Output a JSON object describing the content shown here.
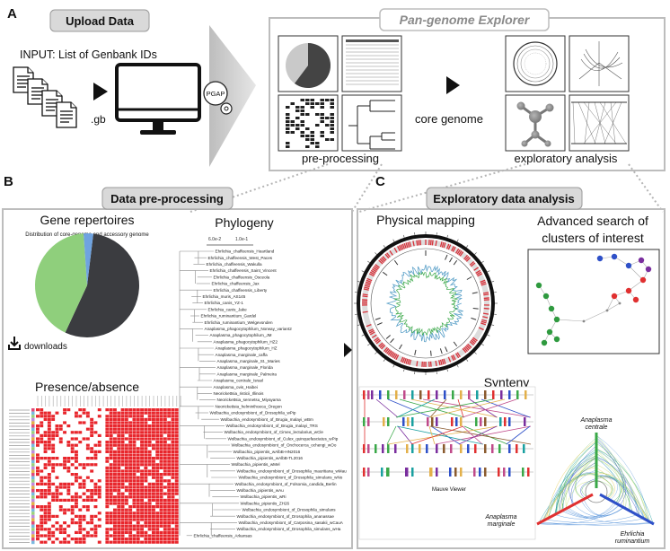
{
  "panel_a": {
    "letter": "A",
    "upload_title": "Upload Data",
    "input_text": "INPUT: List of Genbank IDs",
    "file_ext": ".gb",
    "pgap_label": "PGAP",
    "explorer_title": "Pan-genome Explorer",
    "preprocessing_caption": "pre-processing",
    "core_genome_label": "core genome",
    "exploratory_caption": "exploratory analysis"
  },
  "panel_b": {
    "letter": "B",
    "title": "Data pre-processing",
    "gene_repertoires_title": "Gene repertoires",
    "pie_subtitle": "Distribution of core-genome and accessory genome",
    "downloads_label": "downloads",
    "phylogeny_title": "Phylogeny",
    "scale_labels": [
      "6.0e-2",
      "1.0e-1"
    ],
    "presence_absence_title": "Presence/absence",
    "pie": {
      "slices": [
        {
          "name": "core",
          "value": 0.55,
          "color": "#3b3c40"
        },
        {
          "name": "accessory",
          "value": 0.42,
          "color": "#8fcf7c"
        },
        {
          "name": "other",
          "value": 0.03,
          "color": "#6fa3e0"
        }
      ]
    },
    "tree_leaves": [
      "Ehrlichia_chaffeensis_Heartland",
      "Ehrlichia_chaffeensis_West_Paces",
      "Ehrlichia_chaffeensis_Wakulla",
      "Ehrlichia_chaffeensis_Saint_Vincent",
      "Ehrlichia_chaffeensis_Osceola",
      "Ehrlichia_chaffeensis_Jax",
      "Ehrlichia_chaffeensis_Liberty",
      "Ehrlichia_muris_AS145",
      "Ehrlichia_canis_YZ-1",
      "Ehrlichia_canis_Jake",
      "Ehrlichia_ruminantium_Gardel",
      "Ehrlichia_ruminantium_Welgevonden",
      "Anaplasma_phagocytophilum_Norway_variant2",
      "Anaplasma_phagocytophilum_JM",
      "Anaplasma_phagocytophilum_HZ2",
      "Anaplasma_phagocytophilum_HZ",
      "Anaplasma_marginale_caffa",
      "Anaplasma_marginale_St._Maries",
      "Anaplasma_marginale_Florida",
      "Anaplasma_marginale_Palmeira",
      "Anaplasma_centrale_Israel",
      "Anaplasma_ovis_Haibei",
      "Neorickettsia_risticii_Illinois",
      "Neorickettsia_sennetsu_Miyayama",
      "Neorickettsia_helminthoeca_Oregon",
      "Wolbachia_endosymbiont_of_Drosophila_wPip",
      "Wolbachia_endosymbiont_of_Brugia_malayi_wBm",
      "Wolbachia_endosymbiont_of_Brugia_malayi_TRS",
      "Wolbachia_endosymbiont_of_Cimex_lectularius_wCle",
      "Wolbachia_endosymbiont_of_Culex_quinquefasciatus_wPip",
      "Wolbachia_endosymbiont_of_Onchocerca_ochengi_wOo",
      "Wolbachia_pipientis_wAlbB-HN2016",
      "Wolbachia_pipientis_wAlbB-TL2016",
      "Wolbachia_pipientis_wMel",
      "Wolbachia_endosymbiont_of_Drosophila_mauritiana_wMau",
      "Wolbachia_endosymbiont_of_Drosophila_simulans_wNo",
      "Wolbachia_endosymbiont_of_Folsomia_candida_Berlin",
      "Wolbachia_pipientis_wAu",
      "Wolbachia_pipientis_wRi",
      "Wolbachia_pipientis_ZH26",
      "Wolbachia_endosymbiont_of_Drosophila_simulans",
      "Wolbachia_endosymbiont_of_Drosophila_ananassae",
      "Wolbachia_endosymbiont_of_Carposina_sasakii_wCauA",
      "Wolbachia_endosymbiont_of_Drosophila_simulans_wHa",
      "Ehrlichia_chaffeensis_Arkansas"
    ]
  },
  "panel_c": {
    "letter": "C",
    "title": "Exploratory data analysis",
    "physical_mapping_title": "Physical mapping",
    "advanced_search_title_line1": "Advanced search of",
    "advanced_search_title_line2": "clusters of interest",
    "synteny_title": "Synteny",
    "mauve_label": "Mauve Viewer",
    "species_a": "Anaplasma",
    "species_a2": "centrale",
    "species_b": "Anaplasma",
    "species_b2": "marginale",
    "species_c": "Ehrlichia",
    "species_c2": "ruminantium"
  },
  "colors": {
    "panel_gray": "#d9d9d9",
    "arrow_gray": "#c8c8c8",
    "heatmap_red": "#e8262c",
    "circos_red": "#d8313a",
    "green": "#3aa848",
    "blue": "#2e50c8",
    "red": "#e03030"
  }
}
